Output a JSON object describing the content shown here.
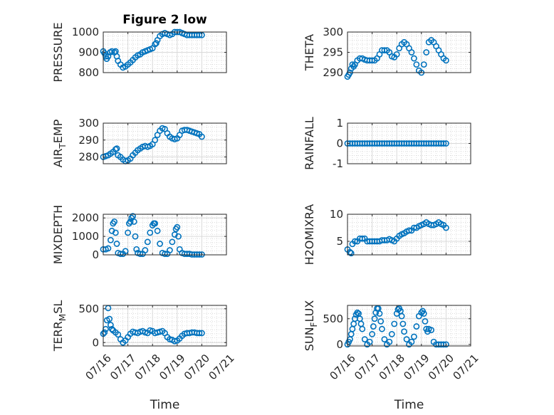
{
  "chart_data": [
    {
      "type": "scatter",
      "title": "Figure 2 low",
      "ylabel": "PRESSURE",
      "xlabel": "",
      "xlim": [
        "07/16",
        "07/21"
      ],
      "xticks": [
        "07/16",
        "07/17",
        "07/18",
        "07/19",
        "07/20",
        "07/21"
      ],
      "ylim": [
        800,
        1000
      ],
      "yticks": [
        800,
        900,
        1000
      ],
      "grid": true,
      "color": "#0072BD",
      "x": [
        0.0,
        0.05,
        0.1,
        0.14,
        0.2,
        0.28,
        0.35,
        0.45,
        0.5,
        0.55,
        0.6,
        0.7,
        0.8,
        0.9,
        1.0,
        1.1,
        1.2,
        1.3,
        1.4,
        1.5,
        1.6,
        1.7,
        1.8,
        1.9,
        2.0,
        2.1,
        2.15,
        2.2,
        2.3,
        2.4,
        2.5,
        2.6,
        2.7,
        2.8,
        2.9,
        3.0,
        3.1,
        3.2,
        3.3,
        3.4,
        3.5,
        3.6,
        3.7,
        3.8,
        3.9,
        4.0
      ],
      "y": [
        905,
        895,
        880,
        868,
        880,
        900,
        905,
        900,
        905,
        880,
        858,
        840,
        825,
        830,
        840,
        850,
        862,
        875,
        885,
        890,
        900,
        905,
        910,
        915,
        920,
        940,
        945,
        960,
        980,
        990,
        995,
        990,
        985,
        990,
        1000,
        1000,
        1000,
        995,
        990,
        985,
        985,
        985,
        985,
        985,
        985,
        985
      ]
    },
    {
      "type": "scatter",
      "title": "",
      "ylabel": "THETA",
      "xlabel": "",
      "xlim": [
        "07/16",
        "07/21"
      ],
      "xticks": [
        "07/16",
        "07/17",
        "07/18",
        "07/19",
        "07/20",
        "07/21"
      ],
      "ylim": [
        290,
        300
      ],
      "yticks": [
        290,
        295,
        300
      ],
      "grid": true,
      "color": "#0072BD",
      "x": [
        0.0,
        0.05,
        0.1,
        0.15,
        0.2,
        0.25,
        0.3,
        0.4,
        0.5,
        0.6,
        0.7,
        0.8,
        0.9,
        1.0,
        1.1,
        1.2,
        1.3,
        1.4,
        1.5,
        1.6,
        1.7,
        1.8,
        1.9,
        2.0,
        2.1,
        2.2,
        2.3,
        2.4,
        2.5,
        2.6,
        2.7,
        2.8,
        2.9,
        3.0,
        3.1,
        3.2,
        3.3,
        3.4,
        3.5,
        3.6,
        3.7,
        3.8,
        3.9,
        4.0
      ],
      "y": [
        289,
        289.5,
        290,
        291,
        292,
        291.5,
        292,
        293,
        293.5,
        293.5,
        293.2,
        293,
        293,
        293,
        293,
        293.5,
        294.5,
        295.5,
        295.5,
        295.5,
        295,
        294,
        293.8,
        294.5,
        296,
        297,
        297.5,
        297,
        296,
        295,
        293.5,
        292,
        290.5,
        290,
        292,
        295,
        297.5,
        298,
        297.5,
        296.5,
        295.5,
        294.5,
        293.5,
        293
      ]
    },
    {
      "type": "scatter",
      "title": "",
      "ylabel": "AIR_TEMP",
      "ylabel_main": "AIR",
      "ylabel_sub": "T",
      "ylabel_rest": "EMP",
      "xlabel": "",
      "xlim": [
        "07/16",
        "07/21"
      ],
      "xticks": [
        "07/16",
        "07/17",
        "07/18",
        "07/19",
        "07/20",
        "07/21"
      ],
      "ylim": [
        276,
        300
      ],
      "yticks": [
        280,
        290,
        300
      ],
      "grid": true,
      "color": "#0072BD",
      "x": [
        0.0,
        0.1,
        0.2,
        0.3,
        0.4,
        0.5,
        0.55,
        0.6,
        0.7,
        0.8,
        0.9,
        1.0,
        1.1,
        1.2,
        1.3,
        1.4,
        1.5,
        1.6,
        1.7,
        1.8,
        1.9,
        2.0,
        2.1,
        2.2,
        2.3,
        2.4,
        2.5,
        2.6,
        2.7,
        2.8,
        2.9,
        3.0,
        3.1,
        3.2,
        3.3,
        3.4,
        3.5,
        3.6,
        3.7,
        3.8,
        3.9,
        4.0
      ],
      "y": [
        280,
        280.5,
        281,
        282,
        283,
        284.5,
        285,
        281,
        280,
        278.5,
        277.5,
        278,
        279,
        281,
        282.5,
        284,
        285,
        286,
        286.5,
        286,
        286.5,
        287.5,
        290,
        293,
        295.5,
        297,
        296.5,
        294,
        292,
        291,
        290.5,
        291,
        293,
        295.5,
        296,
        296,
        295.5,
        295,
        294.5,
        294,
        293.5,
        292
      ]
    },
    {
      "type": "scatter",
      "title": "",
      "ylabel": "RAINFALL",
      "xlabel": "",
      "xlim": [
        "07/16",
        "07/21"
      ],
      "xticks": [
        "07/16",
        "07/17",
        "07/18",
        "07/19",
        "07/20",
        "07/21"
      ],
      "ylim": [
        -1,
        1
      ],
      "yticks": [
        -1,
        0,
        1
      ],
      "grid": true,
      "color": "#0072BD",
      "x": [
        0.0,
        0.1,
        0.2,
        0.3,
        0.4,
        0.5,
        0.6,
        0.7,
        0.8,
        0.9,
        1.0,
        1.1,
        1.2,
        1.3,
        1.4,
        1.5,
        1.6,
        1.7,
        1.8,
        1.9,
        2.0,
        2.1,
        2.2,
        2.3,
        2.4,
        2.5,
        2.6,
        2.7,
        2.8,
        2.9,
        3.0,
        3.1,
        3.2,
        3.3,
        3.4,
        3.5,
        3.6,
        3.7,
        3.8,
        3.9,
        4.0
      ],
      "y": [
        0,
        0,
        0,
        0,
        0,
        0,
        0,
        0,
        0,
        0,
        0,
        0,
        0,
        0,
        0,
        0,
        0,
        0,
        0,
        0,
        0,
        0,
        0,
        0,
        0,
        0,
        0,
        0,
        0,
        0,
        0,
        0,
        0,
        0,
        0,
        0,
        0,
        0,
        0,
        0,
        0
      ]
    },
    {
      "type": "scatter",
      "title": "",
      "ylabel": "MIXDEPTH",
      "xlabel": "",
      "xlim": [
        "07/16",
        "07/21"
      ],
      "xticks": [
        "07/16",
        "07/17",
        "07/18",
        "07/19",
        "07/20",
        "07/21"
      ],
      "ylim": [
        0,
        2200
      ],
      "yticks": [
        0,
        1000,
        2000
      ],
      "grid": true,
      "color": "#0072BD",
      "x": [
        0.0,
        0.1,
        0.2,
        0.3,
        0.35,
        0.4,
        0.45,
        0.5,
        0.55,
        0.6,
        0.7,
        0.8,
        0.9,
        1.0,
        1.05,
        1.1,
        1.15,
        1.2,
        1.25,
        1.3,
        1.35,
        1.4,
        1.5,
        1.6,
        1.7,
        1.8,
        1.9,
        2.0,
        2.05,
        2.1,
        2.2,
        2.3,
        2.4,
        2.5,
        2.6,
        2.7,
        2.8,
        2.9,
        2.95,
        3.0,
        3.05,
        3.1,
        3.2,
        3.3,
        3.4,
        3.5,
        3.6,
        3.7,
        3.8,
        3.9,
        4.0
      ],
      "y": [
        300,
        300,
        350,
        800,
        1300,
        1700,
        1800,
        1200,
        600,
        100,
        50,
        50,
        200,
        1200,
        1700,
        1800,
        2000,
        2100,
        1800,
        1000,
        300,
        100,
        50,
        50,
        250,
        700,
        1200,
        1600,
        1700,
        1700,
        1300,
        600,
        100,
        50,
        50,
        250,
        700,
        1100,
        1400,
        1500,
        1000,
        300,
        100,
        50,
        50,
        50,
        20,
        20,
        20,
        20,
        20
      ]
    },
    {
      "type": "scatter",
      "title": "",
      "ylabel": "H2OMIXRA",
      "xlabel": "",
      "xlim": [
        "07/16",
        "07/21"
      ],
      "xticks": [
        "07/16",
        "07/17",
        "07/18",
        "07/19",
        "07/20",
        "07/21"
      ],
      "ylim": [
        2.5,
        10
      ],
      "yticks": [
        5,
        10
      ],
      "grid": true,
      "color": "#0072BD",
      "x": [
        0.0,
        0.1,
        0.15,
        0.2,
        0.3,
        0.4,
        0.5,
        0.6,
        0.7,
        0.8,
        0.9,
        1.0,
        1.1,
        1.2,
        1.3,
        1.4,
        1.5,
        1.6,
        1.7,
        1.8,
        1.9,
        2.0,
        2.1,
        2.2,
        2.3,
        2.4,
        2.5,
        2.6,
        2.7,
        2.8,
        2.9,
        3.0,
        3.1,
        3.2,
        3.3,
        3.4,
        3.5,
        3.6,
        3.7,
        3.8,
        3.9,
        4.0
      ],
      "y": [
        3.5,
        3,
        2.8,
        4.5,
        5,
        5,
        5.5,
        5.5,
        5.5,
        5,
        5,
        5,
        5,
        5,
        5,
        5.2,
        5.2,
        5.2,
        5.4,
        5.2,
        5,
        5.5,
        6,
        6.3,
        6.5,
        6.8,
        7,
        7,
        7.5,
        7.5,
        7.8,
        8,
        8.2,
        8.5,
        8.2,
        8,
        8,
        8.2,
        8.5,
        8.2,
        8,
        7.5
      ]
    },
    {
      "type": "scatter",
      "title": "",
      "ylabel": "TERR_MSL",
      "ylabel_main": "TERR",
      "ylabel_sub": "M",
      "ylabel_rest": "SL",
      "xlabel": "Time",
      "xlim": [
        "07/16",
        "07/21"
      ],
      "xticks": [
        "07/16",
        "07/17",
        "07/18",
        "07/19",
        "07/20",
        "07/21"
      ],
      "ylim": [
        -50,
        550
      ],
      "yticks": [
        0,
        500
      ],
      "grid": true,
      "color": "#0072BD",
      "x": [
        0.0,
        0.05,
        0.1,
        0.15,
        0.2,
        0.25,
        0.3,
        0.35,
        0.4,
        0.5,
        0.6,
        0.7,
        0.8,
        0.9,
        1.0,
        1.1,
        1.2,
        1.3,
        1.4,
        1.5,
        1.6,
        1.7,
        1.8,
        1.9,
        2.0,
        2.1,
        2.2,
        2.3,
        2.4,
        2.5,
        2.6,
        2.7,
        2.8,
        2.9,
        3.0,
        3.1,
        3.2,
        3.3,
        3.4,
        3.5,
        3.6,
        3.7,
        3.8,
        3.9,
        4.0
      ],
      "y": [
        130,
        150,
        200,
        330,
        510,
        350,
        260,
        200,
        180,
        150,
        120,
        50,
        0,
        30,
        80,
        130,
        160,
        150,
        140,
        160,
        170,
        150,
        140,
        180,
        170,
        140,
        150,
        160,
        170,
        140,
        80,
        50,
        40,
        20,
        30,
        60,
        100,
        130,
        140,
        140,
        150,
        150,
        140,
        140,
        140
      ]
    },
    {
      "type": "scatter",
      "title": "",
      "ylabel": "SUN_FLUX",
      "ylabel_main": "SUN",
      "ylabel_sub": "F",
      "ylabel_rest": "LUX",
      "xlabel": "Time",
      "xlim": [
        "07/16",
        "07/21"
      ],
      "xticks": [
        "07/16",
        "07/17",
        "07/18",
        "07/19",
        "07/20",
        "07/21"
      ],
      "ylim": [
        -30,
        760
      ],
      "yticks": [
        0,
        500
      ],
      "grid": true,
      "color": "#0072BD",
      "x": [
        0.0,
        0.05,
        0.1,
        0.15,
        0.2,
        0.25,
        0.3,
        0.35,
        0.4,
        0.45,
        0.5,
        0.55,
        0.6,
        0.7,
        0.8,
        0.9,
        1.0,
        1.05,
        1.1,
        1.15,
        1.2,
        1.25,
        1.3,
        1.35,
        1.4,
        1.5,
        1.6,
        1.7,
        1.8,
        1.9,
        2.0,
        2.05,
        2.1,
        2.15,
        2.2,
        2.25,
        2.3,
        2.4,
        2.5,
        2.6,
        2.7,
        2.8,
        2.9,
        3.0,
        3.05,
        3.1,
        3.15,
        3.2,
        3.25,
        3.3,
        3.4,
        3.5,
        3.6,
        3.7,
        3.8,
        3.9,
        4.0
      ],
      "y": [
        0,
        50,
        100,
        200,
        300,
        400,
        500,
        580,
        620,
        600,
        500,
        400,
        300,
        100,
        0,
        50,
        200,
        350,
        500,
        620,
        700,
        700,
        600,
        450,
        300,
        100,
        0,
        50,
        200,
        400,
        600,
        680,
        700,
        650,
        550,
        400,
        250,
        100,
        0,
        50,
        150,
        350,
        550,
        620,
        650,
        600,
        450,
        300,
        250,
        300,
        280,
        50,
        0,
        0,
        0,
        0,
        0
      ]
    }
  ]
}
